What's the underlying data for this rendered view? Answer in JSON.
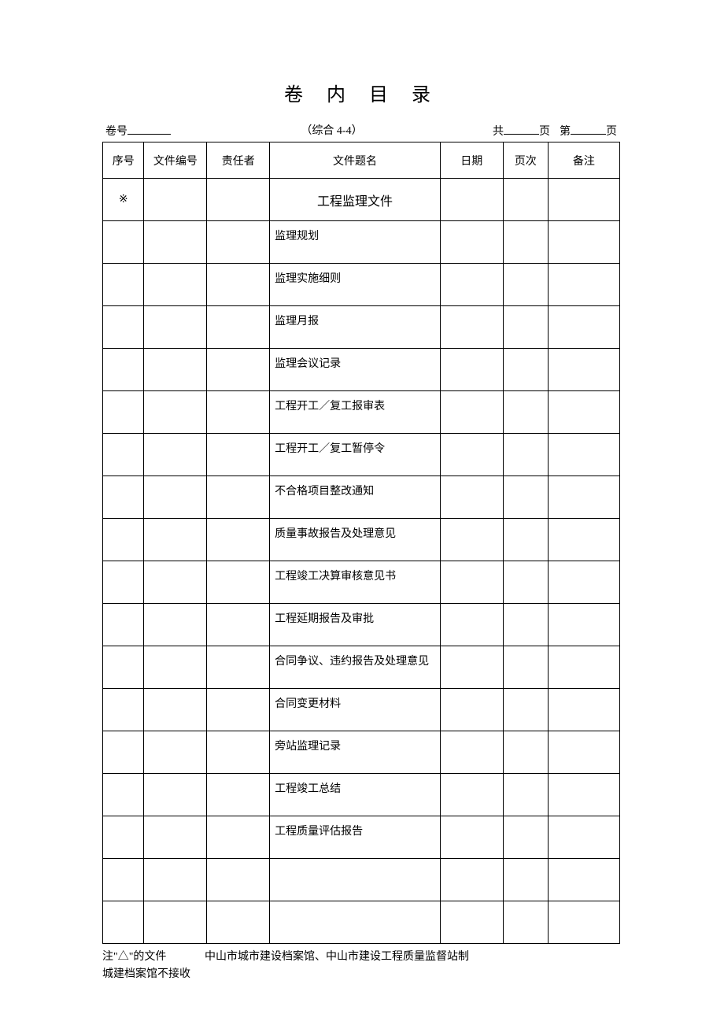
{
  "page": {
    "title": "卷 内 目 录",
    "background_color": "#ffffff",
    "text_color": "#000000",
    "border_color": "#000000",
    "title_fontsize": 24,
    "body_fontsize": 14
  },
  "header": {
    "volume_label": "卷号",
    "volume_value": "",
    "center_text": "（综合 4-4）",
    "total_prefix": "共",
    "total_value": "",
    "page_unit": "页",
    "current_prefix": "第",
    "current_value": "",
    "page_unit2": "页"
  },
  "table": {
    "columns": {
      "seq": "序号",
      "docno": "文件编号",
      "resp": "责任者",
      "title": "文件题名",
      "date": "日期",
      "page": "页次",
      "remark": "备注"
    },
    "column_widths": {
      "seq": 46,
      "docno": 70,
      "resp": 70,
      "title": 190,
      "date": 70,
      "page": 50,
      "remark": 80
    },
    "rows": [
      {
        "seq": "※",
        "docno": "",
        "resp": "",
        "title": "工程监理文件",
        "date": "",
        "page": "",
        "remark": "",
        "is_section": true
      },
      {
        "seq": "",
        "docno": "",
        "resp": "",
        "title": "监理规划",
        "date": "",
        "page": "",
        "remark": ""
      },
      {
        "seq": "",
        "docno": "",
        "resp": "",
        "title": "监理实施细则",
        "date": "",
        "page": "",
        "remark": ""
      },
      {
        "seq": "",
        "docno": "",
        "resp": "",
        "title": "监理月报",
        "date": "",
        "page": "",
        "remark": ""
      },
      {
        "seq": "",
        "docno": "",
        "resp": "",
        "title": "监理会议记录",
        "date": "",
        "page": "",
        "remark": ""
      },
      {
        "seq": "",
        "docno": "",
        "resp": "",
        "title": "工程开工／复工报审表",
        "date": "",
        "page": "",
        "remark": ""
      },
      {
        "seq": "",
        "docno": "",
        "resp": "",
        "title": "工程开工／复工暂停令",
        "date": "",
        "page": "",
        "remark": ""
      },
      {
        "seq": "",
        "docno": "",
        "resp": "",
        "title": "不合格项目整改通知",
        "date": "",
        "page": "",
        "remark": ""
      },
      {
        "seq": "",
        "docno": "",
        "resp": "",
        "title": "质量事故报告及处理意见",
        "date": "",
        "page": "",
        "remark": ""
      },
      {
        "seq": "",
        "docno": "",
        "resp": "",
        "title": "工程竣工决算审核意见书",
        "date": "",
        "page": "",
        "remark": ""
      },
      {
        "seq": "",
        "docno": "",
        "resp": "",
        "title": "工程延期报告及审批",
        "date": "",
        "page": "",
        "remark": ""
      },
      {
        "seq": "",
        "docno": "",
        "resp": "",
        "title": "合同争议、违约报告及处理意见",
        "date": "",
        "page": "",
        "remark": ""
      },
      {
        "seq": "",
        "docno": "",
        "resp": "",
        "title": "合同变更材料",
        "date": "",
        "page": "",
        "remark": ""
      },
      {
        "seq": "",
        "docno": "",
        "resp": "",
        "title": "旁站监理记录",
        "date": "",
        "page": "",
        "remark": ""
      },
      {
        "seq": "",
        "docno": "",
        "resp": "",
        "title": "工程竣工总结",
        "date": "",
        "page": "",
        "remark": ""
      },
      {
        "seq": "",
        "docno": "",
        "resp": "",
        "title": "工程质量评估报告",
        "date": "",
        "page": "",
        "remark": ""
      },
      {
        "seq": "",
        "docno": "",
        "resp": "",
        "title": "",
        "date": "",
        "page": "",
        "remark": ""
      },
      {
        "seq": "",
        "docno": "",
        "resp": "",
        "title": "",
        "date": "",
        "page": "",
        "remark": ""
      }
    ]
  },
  "footer": {
    "note1_left": "注\"△\"的文件",
    "note1_right": "中山市城市建设档案馆、中山市建设工程质量监督站制",
    "note2": "城建档案馆不接收"
  }
}
